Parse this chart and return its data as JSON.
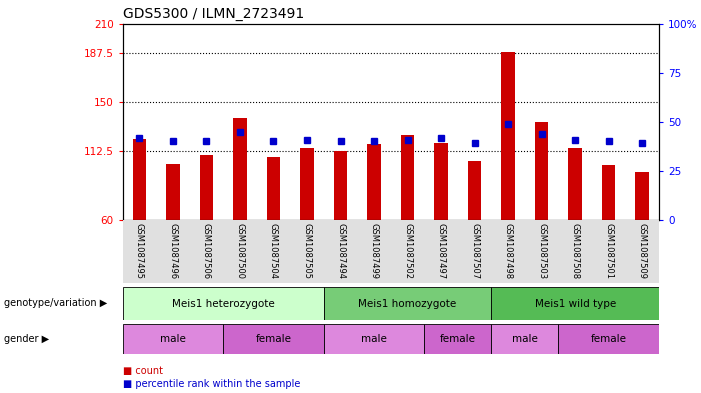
{
  "title": "GDS5300 / ILMN_2723491",
  "samples": [
    "GSM1087495",
    "GSM1087496",
    "GSM1087506",
    "GSM1087500",
    "GSM1087504",
    "GSM1087505",
    "GSM1087494",
    "GSM1087499",
    "GSM1087502",
    "GSM1087497",
    "GSM1087507",
    "GSM1087498",
    "GSM1087503",
    "GSM1087508",
    "GSM1087501",
    "GSM1087509"
  ],
  "bar_values": [
    122,
    103,
    110,
    138,
    108,
    115,
    113,
    118,
    125,
    119,
    105,
    188,
    135,
    115,
    102,
    97
  ],
  "dot_values": [
    42,
    40,
    40,
    45,
    40,
    41,
    40,
    40,
    41,
    42,
    39,
    49,
    44,
    41,
    40,
    39
  ],
  "bar_color": "#cc0000",
  "dot_color": "#0000cc",
  "ylim_left": [
    60,
    210
  ],
  "ylim_right": [
    0,
    100
  ],
  "yticks_left": [
    60,
    112.5,
    150,
    187.5,
    210
  ],
  "ytick_labels_left": [
    "60",
    "112.5",
    "150",
    "187.5",
    "210"
  ],
  "yticks_right": [
    0,
    25,
    50,
    75,
    100
  ],
  "ytick_labels_right": [
    "0",
    "25",
    "50",
    "75",
    "100%"
  ],
  "hlines": [
    112.5,
    150,
    187.5
  ],
  "genotype_groups": [
    {
      "label": "Meis1 heterozygote",
      "start": 0,
      "end": 6
    },
    {
      "label": "Meis1 homozygote",
      "start": 6,
      "end": 11
    },
    {
      "label": "Meis1 wild type",
      "start": 11,
      "end": 16
    }
  ],
  "geno_colors": [
    "#ccffcc",
    "#77cc77",
    "#55bb55"
  ],
  "gender_groups": [
    {
      "label": "male",
      "start": 0,
      "end": 3
    },
    {
      "label": "female",
      "start": 3,
      "end": 6
    },
    {
      "label": "male",
      "start": 6,
      "end": 9
    },
    {
      "label": "female",
      "start": 9,
      "end": 11
    },
    {
      "label": "male",
      "start": 11,
      "end": 13
    },
    {
      "label": "female",
      "start": 13,
      "end": 16
    }
  ],
  "gender_colors": [
    "#dd88dd",
    "#cc66cc",
    "#dd88dd",
    "#cc66cc",
    "#dd88dd",
    "#cc66cc"
  ],
  "genotype_label": "genotype/variation",
  "gender_label": "gender",
  "legend_count": "count",
  "legend_percentile": "percentile rank within the sample",
  "bar_width": 0.4,
  "background_color": "#ffffff"
}
